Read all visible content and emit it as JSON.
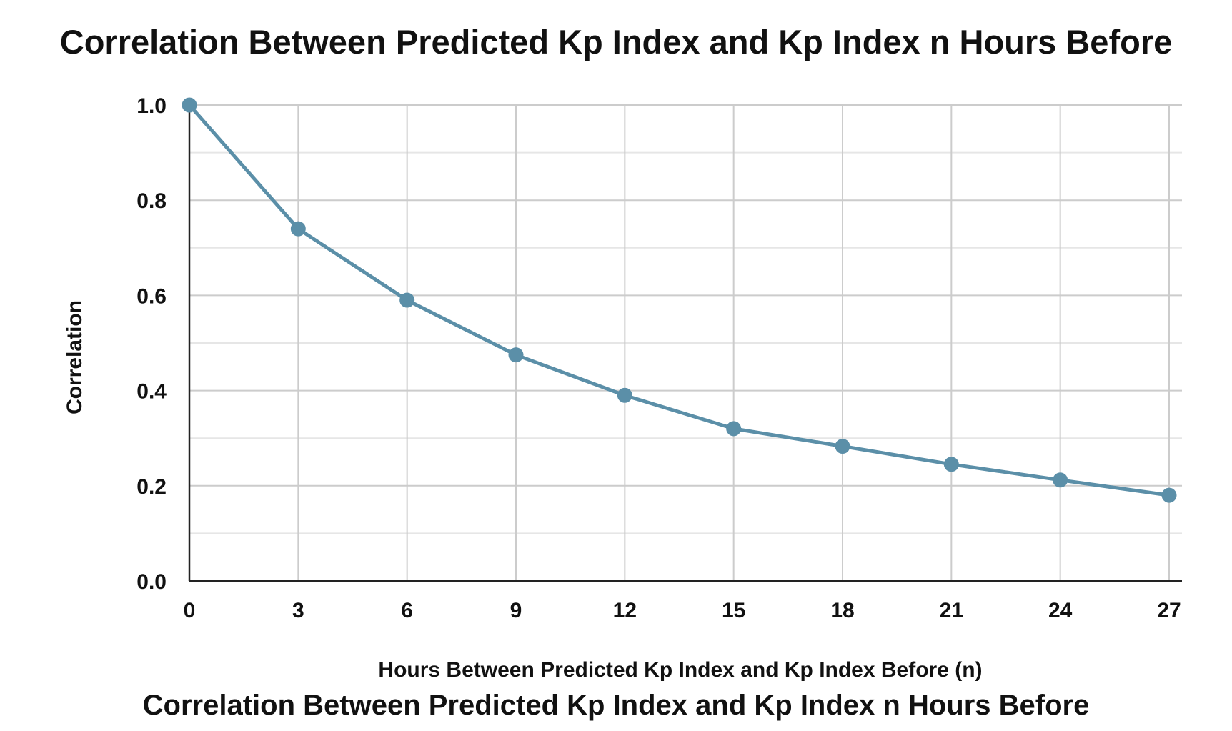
{
  "chart_data": {
    "type": "line",
    "title": "Correlation Between Predicted Kp Index and Kp Index n Hours Before",
    "caption": "Correlation Between Predicted Kp Index and Kp Index n Hours Before",
    "xlabel": "Hours Between Predicted Kp Index and Kp Index Before (n)",
    "ylabel": "Correlation",
    "x": [
      0,
      3,
      6,
      9,
      12,
      15,
      18,
      21,
      24,
      27
    ],
    "xticks": [
      "0",
      "3",
      "6",
      "9",
      "12",
      "15",
      "18",
      "21",
      "24",
      "27"
    ],
    "xlim": [
      0,
      27
    ],
    "ylim": [
      0,
      1
    ],
    "yticks": [
      "0.0",
      "0.2",
      "0.4",
      "0.6",
      "0.8",
      "1.0"
    ],
    "ytick_values": [
      0,
      0.2,
      0.4,
      0.6,
      0.8,
      1.0
    ],
    "grid": true,
    "series": [
      {
        "values": [
          1.0,
          0.74,
          0.59,
          0.475,
          0.39,
          0.32,
          0.283,
          0.245,
          0.212,
          0.18
        ],
        "color": "#5b8fa8"
      }
    ]
  }
}
